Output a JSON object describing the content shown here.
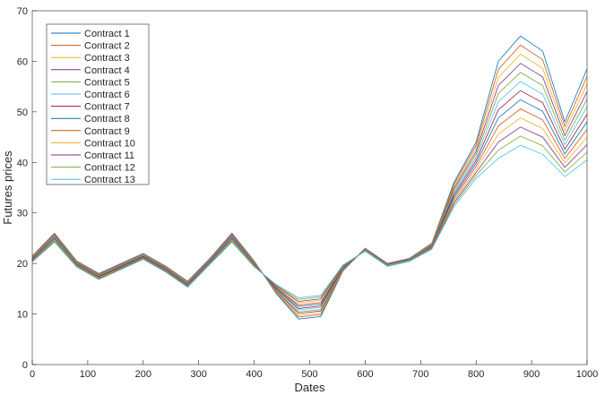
{
  "chart_data": {
    "type": "line",
    "title": "",
    "xlabel": "Dates",
    "ylabel": "Futures prices",
    "xlim": [
      0,
      1000
    ],
    "ylim": [
      0,
      70
    ],
    "xticks": [
      0,
      100,
      200,
      300,
      400,
      500,
      600,
      700,
      800,
      900,
      1000
    ],
    "yticks": [
      0,
      10,
      20,
      30,
      40,
      50,
      60,
      70
    ],
    "grid": false,
    "legend_position": "top-left",
    "colors": [
      "#0072BD",
      "#D95319",
      "#EDB120",
      "#7E2F8E",
      "#77AC30",
      "#4DBEEE",
      "#A2142F"
    ],
    "x": [
      0,
      40,
      80,
      120,
      160,
      200,
      240,
      280,
      320,
      360,
      400,
      440,
      480,
      520,
      560,
      600,
      640,
      680,
      720,
      760,
      800,
      840,
      880,
      920,
      960,
      1000
    ],
    "series": [
      {
        "name": "Contract 1",
        "values": [
          21.5,
          26,
          20.5,
          18,
          20,
          22,
          19.5,
          16.5,
          21,
          26,
          20.5,
          14,
          9,
          9.5,
          18.5,
          23,
          20,
          21,
          24,
          36,
          44,
          60,
          65,
          62,
          48,
          58.5
        ]
      },
      {
        "name": "Contract 2",
        "values": [
          21.4,
          25.9,
          20.4,
          17.9,
          19.9,
          21.9,
          19.4,
          16.4,
          20.9,
          25.9,
          20.4,
          14.2,
          9.4,
          9.9,
          18.6,
          23,
          20,
          21,
          23.9,
          35.6,
          43.4,
          58.4,
          63.2,
          60.3,
          47.1,
          57
        ]
      },
      {
        "name": "Contract 3",
        "values": [
          21.3,
          25.7,
          20.3,
          17.8,
          19.8,
          21.8,
          19.3,
          16.3,
          20.8,
          25.7,
          20.3,
          14.3,
          9.7,
          10.2,
          18.7,
          22.9,
          19.9,
          20.9,
          23.8,
          35.2,
          42.8,
          56.8,
          61.4,
          58.6,
          46.2,
          55.5
        ]
      },
      {
        "name": "Contract 4",
        "values": [
          21.2,
          25.6,
          20.2,
          17.7,
          19.7,
          21.7,
          19.2,
          16.2,
          20.7,
          25.6,
          20.2,
          14.5,
          10.1,
          10.6,
          18.8,
          22.9,
          19.9,
          20.9,
          23.7,
          34.8,
          42.2,
          55.2,
          59.6,
          56.9,
          45.3,
          54
        ]
      },
      {
        "name": "Contract 5",
        "values": [
          21.1,
          25.4,
          20.1,
          17.6,
          19.6,
          21.6,
          19.1,
          16.1,
          20.6,
          25.4,
          20.1,
          14.6,
          10.4,
          10.9,
          18.9,
          22.8,
          19.8,
          20.8,
          23.6,
          34.4,
          41.6,
          53.6,
          57.8,
          55.2,
          44.4,
          52.5
        ]
      },
      {
        "name": "Contract 6",
        "values": [
          21,
          25.3,
          20,
          17.5,
          19.5,
          21.5,
          19,
          16,
          20.5,
          25.3,
          20,
          14.8,
          10.8,
          11.3,
          19,
          22.8,
          19.8,
          20.8,
          23.5,
          34,
          41,
          52,
          56,
          53.5,
          43.5,
          51
        ]
      },
      {
        "name": "Contract 7",
        "values": [
          20.9,
          25.1,
          19.9,
          17.4,
          19.4,
          21.4,
          18.9,
          15.9,
          20.4,
          25.1,
          19.9,
          14.9,
          11.1,
          11.6,
          19.1,
          22.7,
          19.7,
          20.7,
          23.4,
          33.6,
          40.4,
          50.4,
          54.2,
          51.8,
          42.6,
          49.5
        ]
      },
      {
        "name": "Contract 8",
        "values": [
          20.8,
          25,
          19.8,
          17.3,
          19.3,
          21.3,
          18.8,
          15.8,
          20.3,
          25,
          19.8,
          15.1,
          11.5,
          12,
          19.2,
          22.7,
          19.7,
          20.7,
          23.3,
          33.2,
          39.8,
          48.8,
          52.4,
          50.1,
          41.7,
          48
        ]
      },
      {
        "name": "Contract 9",
        "values": [
          20.7,
          24.8,
          19.7,
          17.2,
          19.2,
          21.2,
          18.7,
          15.7,
          20.2,
          24.8,
          19.7,
          15.2,
          11.8,
          12.3,
          19.3,
          22.6,
          19.6,
          20.6,
          23.2,
          32.8,
          39.2,
          47.2,
          50.6,
          48.4,
          40.8,
          46.5
        ]
      },
      {
        "name": "Contract 10",
        "values": [
          20.6,
          24.7,
          19.6,
          17.1,
          19.1,
          21.1,
          18.6,
          15.6,
          20.1,
          24.7,
          19.6,
          15.4,
          12.2,
          12.7,
          19.4,
          22.6,
          19.6,
          20.6,
          23.1,
          32.4,
          38.6,
          45.6,
          48.8,
          46.7,
          39.9,
          45
        ]
      },
      {
        "name": "Contract 11",
        "values": [
          20.5,
          24.5,
          19.5,
          17,
          19,
          21,
          18.5,
          15.5,
          20,
          24.5,
          19.5,
          15.5,
          12.5,
          13,
          19.5,
          22.5,
          19.5,
          20.5,
          23,
          32,
          38,
          44,
          47,
          45,
          39,
          43.5
        ]
      },
      {
        "name": "Contract 12",
        "values": [
          20.4,
          24.4,
          19.4,
          16.9,
          18.9,
          20.9,
          18.4,
          15.4,
          19.9,
          24.4,
          19.4,
          15.7,
          12.9,
          13.4,
          19.6,
          22.5,
          19.5,
          20.5,
          22.9,
          31.6,
          37.4,
          42.4,
          45.2,
          43.3,
          38.1,
          42
        ]
      },
      {
        "name": "Contract 13",
        "values": [
          20.3,
          24.2,
          19.3,
          16.8,
          18.8,
          20.8,
          18.3,
          15.3,
          19.8,
          24.2,
          19.3,
          15.8,
          13.2,
          13.7,
          19.7,
          22.4,
          19.4,
          20.4,
          22.8,
          31.2,
          36.8,
          40.8,
          43.4,
          41.6,
          37.2,
          40.5
        ]
      }
    ]
  }
}
